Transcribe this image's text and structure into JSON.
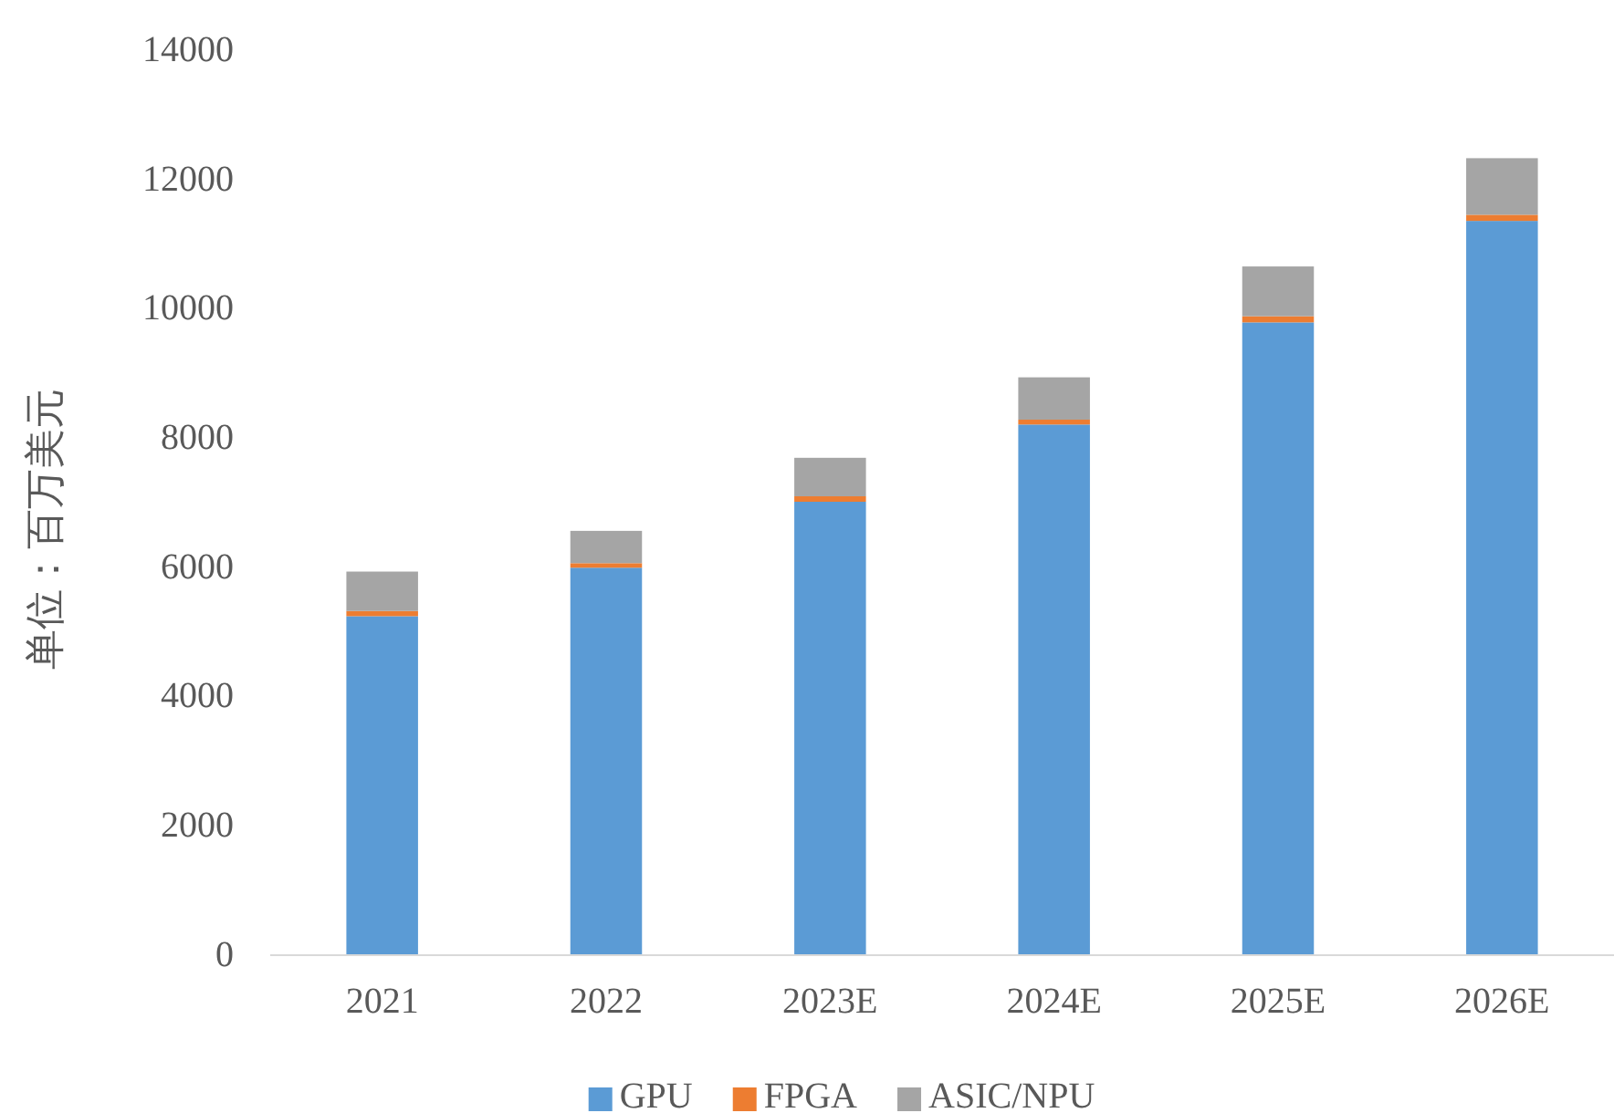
{
  "chart_data": {
    "type": "bar",
    "stacked": true,
    "ylabel": "单位：百万美元",
    "categories": [
      "2021",
      "2022",
      "2023E",
      "2024E",
      "2025E",
      "2026E"
    ],
    "series": [
      {
        "name": "GPU",
        "color": "#5b9bd5",
        "values": [
          5230,
          5980,
          7000,
          8195,
          9775,
          11345
        ]
      },
      {
        "name": "FPGA",
        "color": "#ed7d31",
        "values": [
          80,
          70,
          85,
          75,
          95,
          95
        ]
      },
      {
        "name": "ASIC/NPU",
        "color": "#a5a5a5",
        "values": [
          610,
          500,
          595,
          655,
          770,
          875
        ]
      }
    ],
    "ylim": [
      0,
      14000
    ],
    "yticks": [
      0,
      2000,
      4000,
      6000,
      8000,
      10000,
      12000,
      14000
    ],
    "grid": false,
    "legend": "bottom"
  }
}
